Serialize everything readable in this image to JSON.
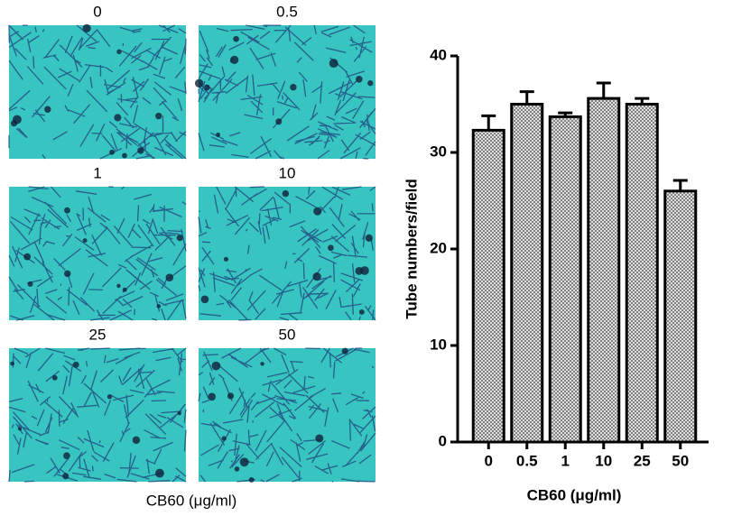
{
  "images": {
    "labels": [
      "0",
      "0.5",
      "1",
      "10",
      "25",
      "50"
    ],
    "caption": "CB60 (μg/ml)"
  },
  "chart_data": {
    "type": "bar",
    "ylabel": "Tube numbers/field",
    "xlabel": "CB60 (μg/ml)",
    "categories": [
      "0",
      "0.5",
      "1",
      "10",
      "25",
      "50"
    ],
    "values": [
      32.3,
      35.0,
      33.7,
      35.6,
      35.0,
      26.0
    ],
    "errors": [
      1.5,
      1.3,
      0.4,
      1.6,
      0.6,
      1.1
    ],
    "color": "#7a7a7a",
    "ylim": [
      0,
      40
    ],
    "yticks": [
      0,
      10,
      20,
      30,
      40
    ]
  }
}
